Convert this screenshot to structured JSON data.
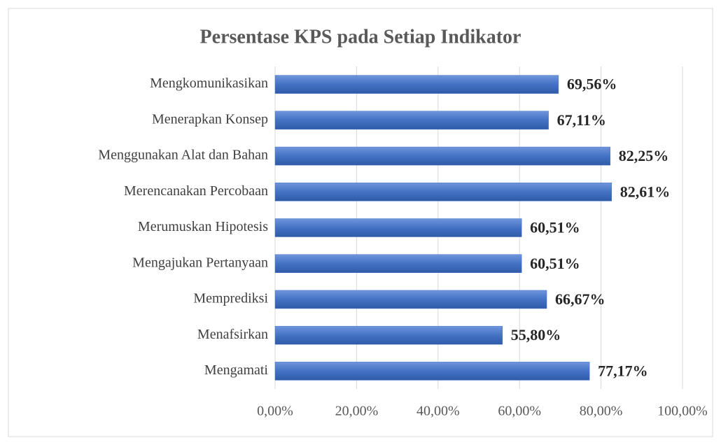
{
  "chart_data": {
    "type": "hbar",
    "title": "Persentase KPS pada Setiap Indikator",
    "categories": [
      "Mengkomunikasikan",
      "Menerapkan Konsep",
      "Menggunakan Alat dan Bahan",
      "Merencanakan Percobaan",
      "Merumuskan Hipotesis",
      "Mengajukan Pertanyaan",
      "Memprediksi",
      "Menafsirkan",
      "Mengamati"
    ],
    "values": [
      69.56,
      67.11,
      82.25,
      82.61,
      60.51,
      60.51,
      66.67,
      55.8,
      77.17
    ],
    "value_labels": [
      "69,56%",
      "67,11%",
      "82,25%",
      "82,61%",
      "60,51%",
      "60,51%",
      "66,67%",
      "55,80%",
      "77,17%"
    ],
    "color": "#4472c4",
    "xlim": [
      0,
      100
    ],
    "xticks": [
      {
        "value": 0,
        "label": "0,00%"
      },
      {
        "value": 20,
        "label": "20,00%"
      },
      {
        "value": 40,
        "label": "40,00%"
      },
      {
        "value": 60,
        "label": "60,00%"
      },
      {
        "value": 80,
        "label": "80,00%"
      },
      {
        "value": 100,
        "label": "100,00%"
      }
    ],
    "grid": true
  }
}
